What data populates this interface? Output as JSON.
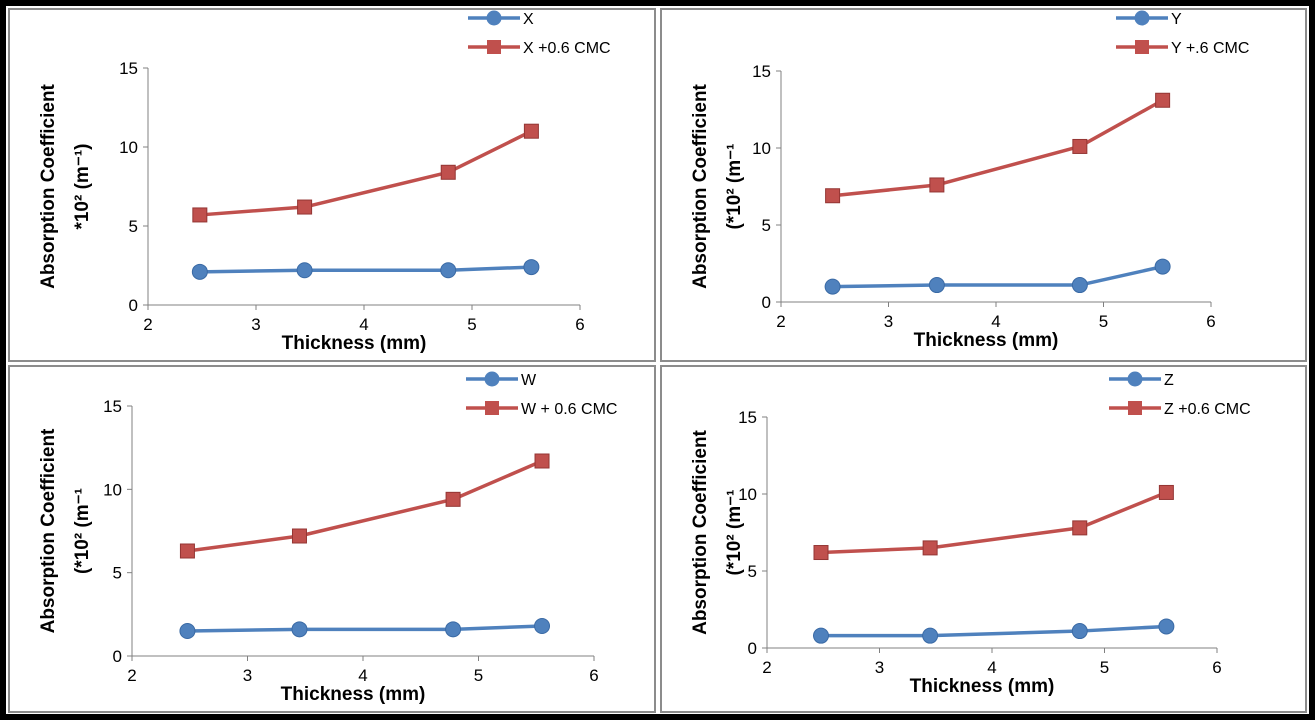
{
  "colors": {
    "series_1": "#4F81BD",
    "series_2": "#C0504D"
  },
  "chart_data": [
    {
      "type": "line",
      "xlabel": "Thickness (mm)",
      "ylabel_line1": "Absorption Coefficient",
      "ylabel_line2": "*10² (m⁻¹)",
      "xlim": [
        2,
        6
      ],
      "ylim": [
        0,
        15
      ],
      "xticks": [
        "2",
        "3",
        "4",
        "5",
        "6"
      ],
      "yticks": [
        "0",
        "5",
        "10",
        "15"
      ],
      "legend_position": "top-right",
      "x": [
        2.48,
        3.45,
        4.78,
        5.55
      ],
      "series": [
        {
          "name": "X",
          "marker": "circle",
          "values": [
            2.1,
            2.2,
            2.2,
            2.4
          ]
        },
        {
          "name": "X +0.6 CMC",
          "marker": "square",
          "values": [
            5.7,
            6.2,
            8.4,
            11.0
          ]
        }
      ]
    },
    {
      "type": "line",
      "xlabel": "Thickness (mm)",
      "ylabel_line1": "Absorption Coefficient",
      "ylabel_line2": "(*10² (m⁻¹",
      "xlim": [
        2,
        6
      ],
      "ylim": [
        0,
        15
      ],
      "xticks": [
        "2",
        "3",
        "4",
        "5",
        "6"
      ],
      "yticks": [
        "0",
        "5",
        "10",
        "15"
      ],
      "legend_position": "top-right",
      "x": [
        2.48,
        3.45,
        4.78,
        5.55
      ],
      "series": [
        {
          "name": "Y",
          "marker": "circle",
          "values": [
            1.0,
            1.1,
            1.1,
            2.3
          ]
        },
        {
          "name": "Y +.6 CMC",
          "marker": "square",
          "values": [
            6.9,
            7.6,
            10.1,
            13.1
          ]
        }
      ]
    },
    {
      "type": "line",
      "xlabel": "Thickness (mm)",
      "ylabel_line1": "Absorption Coefficient",
      "ylabel_line2": "(*10² (m⁻¹",
      "xlim": [
        2,
        6
      ],
      "ylim": [
        0,
        15
      ],
      "xticks": [
        "2",
        "3",
        "4",
        "5",
        "6"
      ],
      "yticks": [
        "0",
        "5",
        "10",
        "15"
      ],
      "legend_position": "top-right",
      "x": [
        2.48,
        3.45,
        4.78,
        5.55
      ],
      "series": [
        {
          "name": "W",
          "marker": "circle",
          "values": [
            1.5,
            1.6,
            1.6,
            1.8
          ]
        },
        {
          "name": "W + 0.6 CMC",
          "marker": "square",
          "values": [
            6.3,
            7.2,
            9.4,
            11.7
          ]
        }
      ]
    },
    {
      "type": "line",
      "xlabel": "Thickness (mm)",
      "ylabel_line1": "Absorption Coefficient",
      "ylabel_line2": "(*10² (m⁻¹",
      "xlim": [
        2,
        6
      ],
      "ylim": [
        0,
        15
      ],
      "xticks": [
        "2",
        "3",
        "4",
        "5",
        "6"
      ],
      "yticks": [
        "0",
        "5",
        "10",
        "15"
      ],
      "legend_position": "top-right",
      "x": [
        2.48,
        3.45,
        4.78,
        5.55
      ],
      "series": [
        {
          "name": "Z",
          "marker": "circle",
          "values": [
            0.8,
            0.8,
            1.1,
            1.4
          ]
        },
        {
          "name": "Z +0.6 CMC",
          "marker": "square",
          "values": [
            6.2,
            6.5,
            7.8,
            10.1
          ]
        }
      ]
    }
  ]
}
